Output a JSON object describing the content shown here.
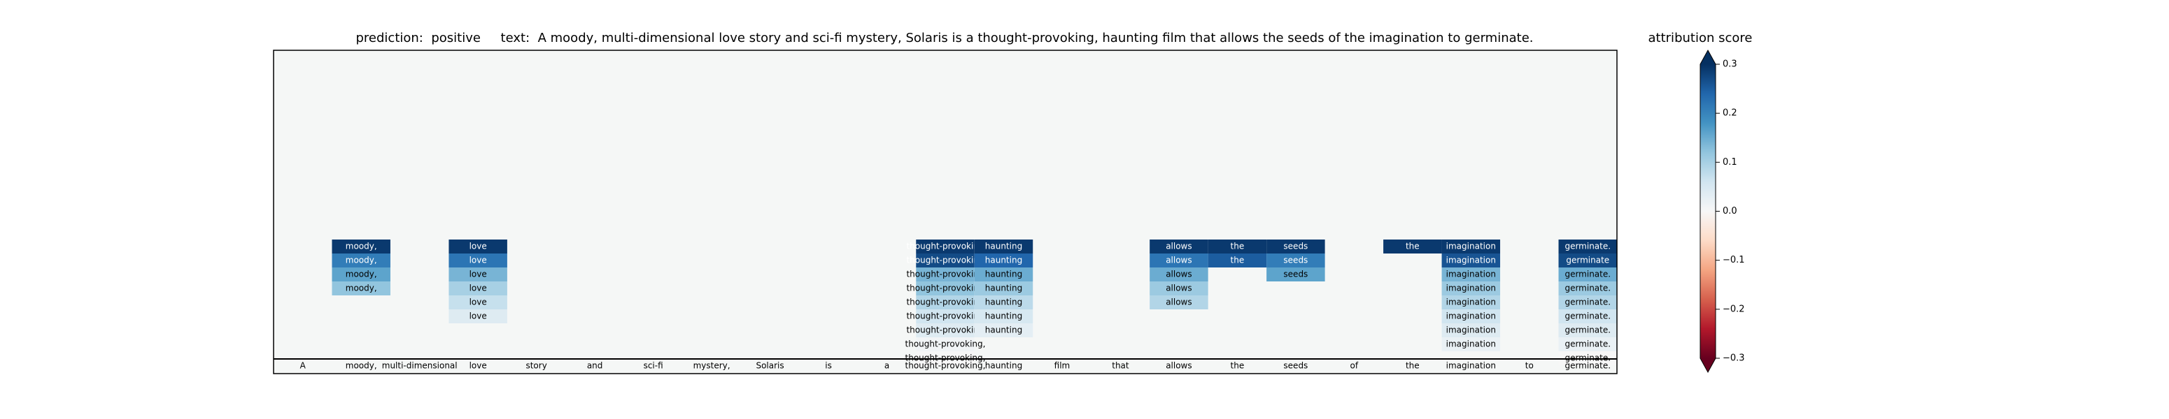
{
  "title": {
    "prediction_label": "prediction:",
    "prediction_value": "positive",
    "text_label": "text:",
    "text_value": "A moody, multi-dimensional love story and sci-fi mystery, Solaris is a thought-provoking, haunting film that allows the seeds of the imagination to germinate."
  },
  "colorbar": {
    "title": "attribution score",
    "ticks": [
      0.3,
      0.2,
      0.1,
      0.0,
      -0.1,
      -0.2,
      -0.3
    ],
    "tick_labels": [
      "0.3",
      "0.2",
      "0.1",
      "0.0",
      "−0.1",
      "−0.2",
      "−0.3"
    ],
    "range": [
      -0.3,
      0.3
    ],
    "colormap": "RdBu",
    "extend": "both"
  },
  "chart_data": {
    "type": "heatmap",
    "tokens": [
      "A",
      "moody,",
      "multi-dimensional",
      "love",
      "story",
      "and",
      "sci-fi",
      "mystery,",
      "Solaris",
      "is",
      "a",
      "thought-provoking,",
      "haunting",
      "film",
      "that",
      "allows",
      "the",
      "seeds",
      "of",
      "the",
      "imagination",
      "to",
      "germinate."
    ],
    "background_color": "#f5f7f6",
    "columns": [
      {
        "token_index": 1,
        "cells": [
          {
            "label": "moody,",
            "score": 0.29
          },
          {
            "label": "moody,",
            "score": 0.21
          },
          {
            "label": "moody,",
            "score": 0.16
          },
          {
            "label": "moody,",
            "score": 0.12
          }
        ]
      },
      {
        "token_index": 3,
        "cells": [
          {
            "label": "love",
            "score": 0.29
          },
          {
            "label": "love",
            "score": 0.22
          },
          {
            "label": "love",
            "score": 0.14
          },
          {
            "label": "love",
            "score": 0.1
          },
          {
            "label": "love",
            "score": 0.07
          },
          {
            "label": "love",
            "score": 0.04
          }
        ]
      },
      {
        "token_index": 11,
        "cells": [
          {
            "label": "thought-provoking",
            "score": 0.29
          },
          {
            "label": "thought-provoking",
            "score": 0.27
          },
          {
            "label": "thought-provoking",
            "score": 0.14
          },
          {
            "label": "thought-provoking",
            "score": 0.12
          },
          {
            "label": "thought-provoking",
            "score": 0.09
          },
          {
            "label": "thought-provoking",
            "score": 0.06
          },
          {
            "label": "thought-provoking",
            "score": 0.04
          },
          {
            "label": "thought-provoking,",
            "score": 0.01
          },
          {
            "label": "thought-provoking,",
            "score": 0.0
          }
        ]
      },
      {
        "token_index": 12,
        "cells": [
          {
            "label": "haunting",
            "score": 0.29
          },
          {
            "label": "haunting",
            "score": 0.24
          },
          {
            "label": "haunting",
            "score": 0.15
          },
          {
            "label": "haunting",
            "score": 0.11
          },
          {
            "label": "haunting",
            "score": 0.08
          },
          {
            "label": "haunting",
            "score": 0.05
          },
          {
            "label": "haunting",
            "score": 0.03
          }
        ]
      },
      {
        "token_index": 15,
        "cells": [
          {
            "label": "allows",
            "score": 0.29
          },
          {
            "label": "allows",
            "score": 0.22
          },
          {
            "label": "allows",
            "score": 0.15
          },
          {
            "label": "allows",
            "score": 0.11
          },
          {
            "label": "allows",
            "score": 0.09
          }
        ]
      },
      {
        "token_index": 16,
        "cells": [
          {
            "label": "the",
            "score": 0.29
          },
          {
            "label": "the",
            "score": 0.25
          }
        ]
      },
      {
        "token_index": 17,
        "cells": [
          {
            "label": "seeds",
            "score": 0.29
          },
          {
            "label": "seeds",
            "score": 0.21
          },
          {
            "label": "seeds",
            "score": 0.16
          }
        ]
      },
      {
        "token_index": 19,
        "cells": [
          {
            "label": "the",
            "score": 0.29
          }
        ]
      },
      {
        "token_index": 20,
        "cells": [
          {
            "label": "imagination",
            "score": 0.29
          },
          {
            "label": "imagination",
            "score": 0.26
          },
          {
            "label": "imagination",
            "score": 0.14
          },
          {
            "label": "imagination",
            "score": 0.11
          },
          {
            "label": "imagination",
            "score": 0.09
          },
          {
            "label": "imagination",
            "score": 0.06
          },
          {
            "label": "imagination",
            "score": 0.04
          },
          {
            "label": "imagination",
            "score": 0.02
          }
        ]
      },
      {
        "token_index": 22,
        "cells": [
          {
            "label": "germinate.",
            "score": 0.29
          },
          {
            "label": "germinate",
            "score": 0.27
          },
          {
            "label": "germinate.",
            "score": 0.15
          },
          {
            "label": "germinate.",
            "score": 0.11
          },
          {
            "label": "germinate.",
            "score": 0.09
          },
          {
            "label": "germinate.",
            "score": 0.06
          },
          {
            "label": "germinate.",
            "score": 0.04
          },
          {
            "label": "germinate.",
            "score": 0.02
          },
          {
            "label": "germinate.",
            "score": 0.0
          }
        ]
      }
    ]
  }
}
